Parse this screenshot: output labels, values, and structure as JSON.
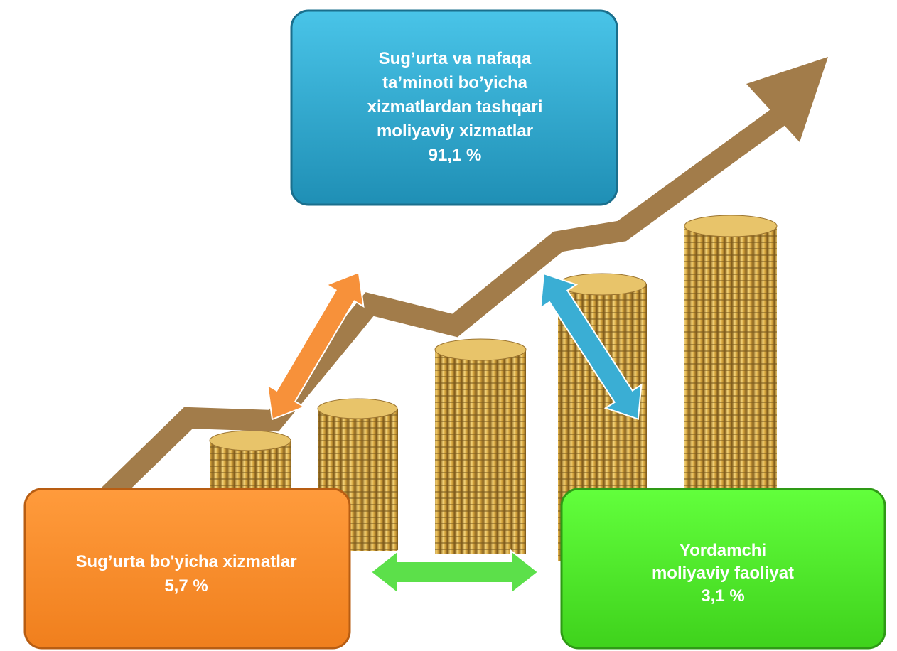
{
  "boxes": [
    {
      "lines": [
        "Sug’urta va nafaqa",
        "ta’minoti bo’yicha",
        "xizmatlardan tashqari",
        "moliyaviy xizmatlar",
        "91,1 %"
      ]
    },
    {
      "lines": [
        "Sug’urta bo'yicha xizmatlar",
        "5,7 %"
      ]
    },
    {
      "lines": [
        "Yordamchi",
        "moliyaviy faoliyat",
        "3,1 %"
      ]
    }
  ]
}
